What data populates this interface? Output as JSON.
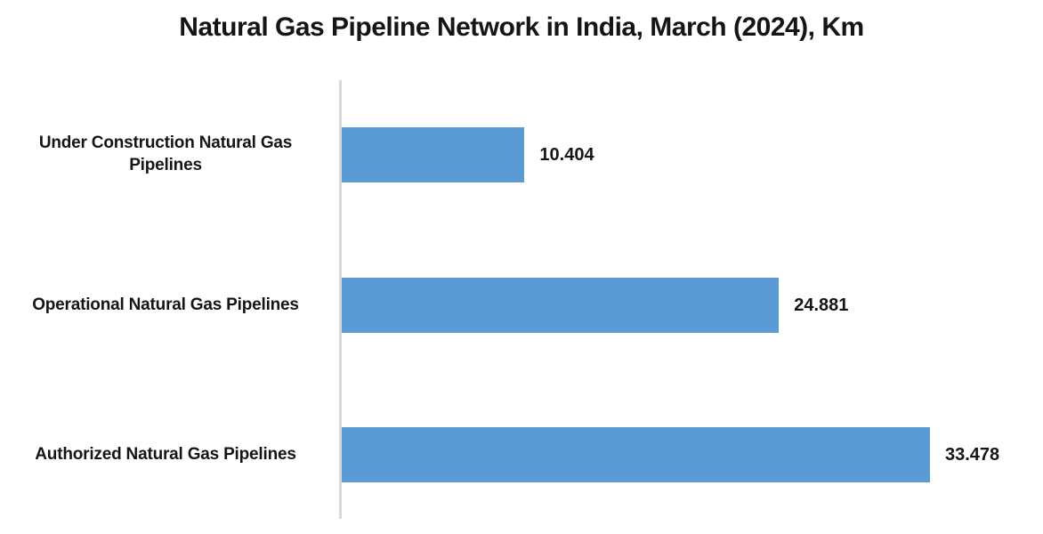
{
  "title": "Natural Gas Pipeline Network in India, March (2024), Km",
  "colors": {
    "bar": "#5b9bd5",
    "axis": "#d9d9d9",
    "text": "#151515",
    "background": "#ffffff"
  },
  "chart_data": {
    "type": "bar",
    "orientation": "horizontal",
    "title": "Natural Gas Pipeline Network in India, March (2024), Km",
    "unit": "Km",
    "categories": [
      "Under Construction Natural Gas Pipelines",
      "Operational Natural Gas Pipelines",
      "Authorized Natural Gas Pipelines"
    ],
    "values": [
      10.404,
      24.881,
      33.478
    ],
    "value_labels": [
      "10.404",
      "24.881",
      "33.478"
    ],
    "xlim": [
      0,
      35
    ],
    "grid": false,
    "legend": false,
    "axis_line": "left-vertical-gray"
  }
}
